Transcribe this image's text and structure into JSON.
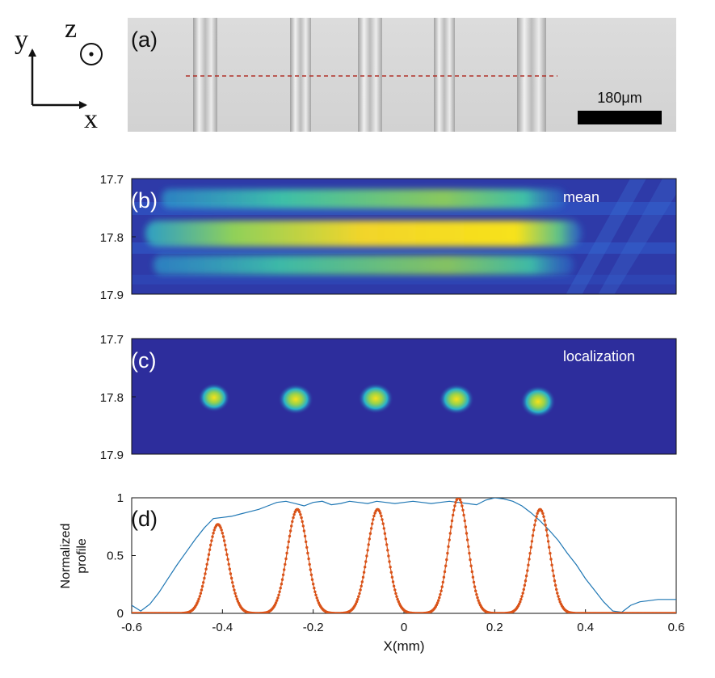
{
  "colors": {
    "profile_mean": "#1f77b4",
    "profile_localization": "#d95319",
    "dashed_line": "#b03028",
    "axes": "#111111",
    "colormap_low": "#2b2b9e",
    "colormap_high": "#f7e21a"
  },
  "coordinate_key": {
    "y_label": "y",
    "x_label": "x",
    "z_label": "z",
    "z_symbol": "out-of-plane-dot-icon"
  },
  "panel_a": {
    "label": "(a)",
    "scale_bar_label": "180μm"
  },
  "panel_b": {
    "label": "(b)",
    "annotation": "mean",
    "y_ticks": [
      "17.7",
      "17.8",
      "17.9"
    ]
  },
  "panel_c": {
    "label": "(c)",
    "annotation": "localization",
    "y_ticks": [
      "17.7",
      "17.8",
      "17.9"
    ]
  },
  "chart_data": {
    "type": "line",
    "label": "(d)",
    "xlabel": "X(mm)",
    "ylabel_line1": "Normalized",
    "ylabel_line2": "profile",
    "xlim": [
      -0.6,
      0.6
    ],
    "ylim": [
      0,
      1
    ],
    "x_ticks": [
      "-0.6",
      "-0.4",
      "-0.2",
      "0",
      "0.2",
      "0.4",
      "0.6"
    ],
    "y_ticks": [
      "0",
      "0.5",
      "1"
    ],
    "series": [
      {
        "name": "mean",
        "style": "line",
        "x": [
          -0.6,
          -0.58,
          -0.56,
          -0.54,
          -0.52,
          -0.5,
          -0.48,
          -0.46,
          -0.44,
          -0.42,
          -0.4,
          -0.38,
          -0.36,
          -0.34,
          -0.32,
          -0.3,
          -0.28,
          -0.26,
          -0.24,
          -0.22,
          -0.2,
          -0.18,
          -0.16,
          -0.14,
          -0.12,
          -0.1,
          -0.08,
          -0.06,
          -0.04,
          -0.02,
          0.0,
          0.02,
          0.04,
          0.06,
          0.08,
          0.1,
          0.12,
          0.14,
          0.16,
          0.18,
          0.2,
          0.22,
          0.24,
          0.26,
          0.28,
          0.3,
          0.32,
          0.34,
          0.36,
          0.38,
          0.4,
          0.42,
          0.44,
          0.46,
          0.48,
          0.5,
          0.52,
          0.54,
          0.56,
          0.58,
          0.6
        ],
        "y": [
          0.07,
          0.02,
          0.08,
          0.18,
          0.3,
          0.42,
          0.53,
          0.64,
          0.74,
          0.82,
          0.83,
          0.84,
          0.86,
          0.88,
          0.9,
          0.93,
          0.96,
          0.97,
          0.95,
          0.93,
          0.96,
          0.97,
          0.94,
          0.95,
          0.97,
          0.96,
          0.95,
          0.97,
          0.96,
          0.95,
          0.96,
          0.97,
          0.96,
          0.95,
          0.96,
          0.97,
          0.96,
          0.95,
          0.94,
          0.98,
          1.0,
          0.99,
          0.97,
          0.93,
          0.87,
          0.8,
          0.72,
          0.63,
          0.52,
          0.42,
          0.3,
          0.2,
          0.1,
          0.02,
          0.01,
          0.07,
          0.1,
          0.11,
          0.12,
          0.12,
          0.12
        ]
      },
      {
        "name": "localization",
        "style": "dots",
        "peaks": [
          {
            "center": -0.41,
            "height": 0.77,
            "width": 0.022
          },
          {
            "center": -0.235,
            "height": 0.9,
            "width": 0.022
          },
          {
            "center": -0.058,
            "height": 0.9,
            "width": 0.022
          },
          {
            "center": 0.12,
            "height": 1.0,
            "width": 0.021
          },
          {
            "center": 0.3,
            "height": 0.9,
            "width": 0.021
          }
        ],
        "baseline": 0.0
      }
    ]
  }
}
